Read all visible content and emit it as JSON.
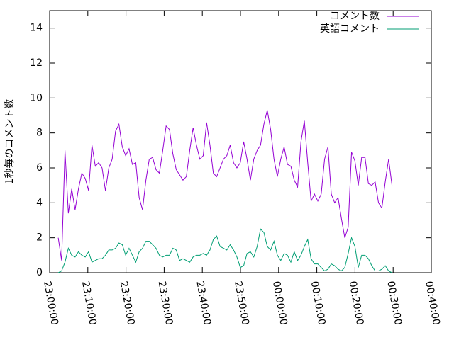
{
  "chart_data": {
    "type": "line",
    "ylabel": "1秒毎のコメント数",
    "x": [
      "23:02:15",
      "23:03:08",
      "23:04:01",
      "23:04:54",
      "23:05:47",
      "23:06:40",
      "23:07:33",
      "23:08:26",
      "23:09:19",
      "23:10:12",
      "23:11:05",
      "23:11:58",
      "23:12:51",
      "23:13:44",
      "23:14:37",
      "23:15:30",
      "23:16:23",
      "23:17:16",
      "23:18:09",
      "23:19:02",
      "23:19:55",
      "23:20:48",
      "23:21:41",
      "23:22:34",
      "23:23:27",
      "23:24:20",
      "23:25:13",
      "23:26:06",
      "23:26:59",
      "23:27:52",
      "23:28:45",
      "23:29:38",
      "23:30:31",
      "23:31:24",
      "23:32:17",
      "23:33:10",
      "23:34:03",
      "23:34:56",
      "23:35:49",
      "23:36:42",
      "23:37:35",
      "23:38:28",
      "23:39:21",
      "23:40:14",
      "23:41:07",
      "23:42:00",
      "23:42:53",
      "23:43:46",
      "23:44:39",
      "23:45:32",
      "23:46:25",
      "23:47:18",
      "23:48:11",
      "23:49:04",
      "23:49:57",
      "23:50:50",
      "23:51:43",
      "23:52:36",
      "23:53:29",
      "23:54:22",
      "23:55:15",
      "23:56:08",
      "23:57:01",
      "23:57:54",
      "23:58:47",
      "23:59:40",
      "00:00:33",
      "00:01:26",
      "00:02:19",
      "00:03:12",
      "00:04:05",
      "00:04:58",
      "00:05:51",
      "00:06:44",
      "00:07:37",
      "00:08:30",
      "00:09:23",
      "00:10:16",
      "00:11:09",
      "00:12:02",
      "00:12:55",
      "00:13:48",
      "00:14:41",
      "00:15:34",
      "00:16:27",
      "00:17:20",
      "00:18:13",
      "00:19:06",
      "00:19:59",
      "00:20:52",
      "00:21:45",
      "00:22:38",
      "00:23:31",
      "00:24:24",
      "00:25:17",
      "00:26:10",
      "00:27:03",
      "00:27:56",
      "00:28:49",
      "00:29:42"
    ],
    "series": [
      {
        "name": "コメント数",
        "color": "#9400d3",
        "values": [
          2.0,
          0.7,
          7.0,
          3.4,
          4.8,
          3.6,
          4.8,
          5.7,
          5.4,
          4.7,
          7.3,
          6.1,
          6.3,
          6.0,
          4.7,
          6.0,
          6.5,
          8.1,
          8.5,
          7.2,
          6.7,
          7.1,
          6.2,
          6.3,
          4.3,
          3.6,
          5.3,
          6.5,
          6.6,
          5.9,
          5.7,
          7.0,
          8.4,
          8.2,
          6.8,
          5.9,
          5.6,
          5.3,
          5.5,
          7.0,
          8.3,
          7.3,
          6.5,
          6.7,
          8.6,
          7.3,
          5.7,
          5.5,
          6.0,
          6.5,
          6.7,
          7.3,
          6.3,
          6.0,
          6.3,
          7.5,
          6.5,
          5.3,
          6.5,
          7.0,
          7.3,
          8.5,
          9.3,
          8.2,
          6.5,
          5.5,
          6.5,
          7.2,
          6.2,
          6.1,
          5.3,
          4.9,
          7.5,
          8.7,
          6.3,
          4.1,
          4.5,
          4.1,
          4.5,
          6.5,
          7.2,
          4.5,
          4.0,
          4.3,
          3.1,
          2.0,
          2.6,
          6.9,
          6.4,
          5.0,
          6.6,
          6.6,
          5.1,
          5.0,
          5.2,
          4.0,
          3.7,
          5.2,
          6.5,
          5.0
        ]
      },
      {
        "name": "英語コメント",
        "color": "#009e73",
        "values": [
          0.0,
          0.1,
          0.6,
          1.4,
          1.0,
          0.9,
          1.2,
          1.0,
          0.9,
          1.2,
          0.6,
          0.7,
          0.8,
          0.8,
          1.0,
          1.3,
          1.3,
          1.4,
          1.7,
          1.6,
          1.0,
          1.4,
          1.0,
          0.6,
          1.2,
          1.4,
          1.8,
          1.8,
          1.6,
          1.4,
          1.0,
          0.9,
          1.0,
          1.0,
          1.4,
          1.3,
          0.7,
          0.8,
          0.7,
          0.6,
          0.9,
          1.0,
          1.0,
          1.1,
          1.0,
          1.3,
          1.9,
          2.1,
          1.5,
          1.4,
          1.3,
          1.6,
          1.3,
          0.9,
          0.3,
          0.4,
          1.1,
          1.2,
          0.9,
          1.5,
          2.5,
          2.3,
          1.5,
          1.3,
          1.8,
          1.0,
          0.7,
          1.1,
          1.0,
          0.6,
          1.2,
          0.7,
          1.0,
          1.5,
          1.9,
          0.8,
          0.5,
          0.5,
          0.3,
          0.1,
          0.2,
          0.5,
          0.4,
          0.2,
          0.1,
          0.3,
          1.1,
          2.0,
          1.5,
          0.3,
          1.0,
          1.0,
          0.8,
          0.4,
          0.1,
          0.1,
          0.2,
          0.4,
          0.1,
          0.0
        ]
      }
    ],
    "xlim": [
      "23:00:00",
      "00:40:00"
    ],
    "xticks": [
      "23:00:00",
      "23:10:00",
      "23:20:00",
      "23:30:00",
      "23:40:00",
      "23:50:00",
      "00:00:00",
      "00:10:00",
      "00:20:00",
      "00:30:00",
      "00:40:00"
    ],
    "ylim": [
      0,
      15
    ],
    "yticks": [
      0,
      2,
      4,
      6,
      8,
      10,
      12,
      14
    ],
    "legend": "top-right"
  }
}
